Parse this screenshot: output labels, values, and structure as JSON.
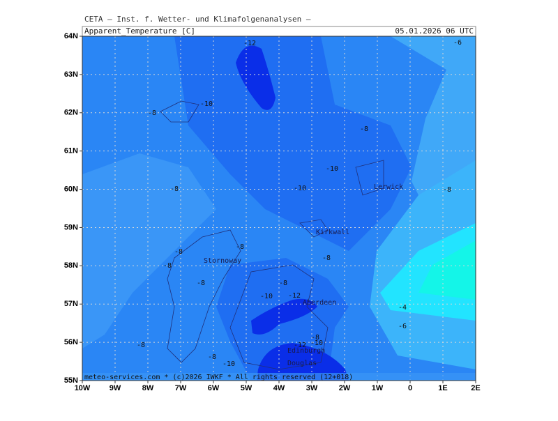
{
  "header": {
    "institute": "CETA — Inst. f. Wetter- und Klimafolgenanalysen —",
    "variable": "Apparent_Temperature [C]",
    "datetime": "05.01.2026 06 UTC"
  },
  "map": {
    "lat_labels": [
      "55N",
      "56N",
      "57N",
      "58N",
      "59N",
      "60N",
      "61N",
      "62N",
      "63N",
      "64N"
    ],
    "lon_labels": [
      "10W",
      "9W",
      "8W",
      "7W",
      "6W",
      "5W",
      "4W",
      "3W",
      "2W",
      "1W",
      "0",
      "1E",
      "2E"
    ],
    "contour_labels": [
      "-12",
      "-6",
      "-10",
      "-8",
      "-8",
      "-10",
      "-8",
      "-10",
      "-8",
      "-8",
      "-8",
      "-8",
      "-8",
      "-8",
      "-8",
      "-10",
      "-12",
      "-4",
      "-6",
      "-8",
      "-8",
      "-12",
      "-10",
      "-8",
      "-10"
    ],
    "places": [
      "Lerwick",
      "Kirkwall",
      "Stornoway",
      "Aberdeen",
      "Edinburgh",
      "Douglas"
    ],
    "footer": "meteo-services.com * (c)2026 IWKF * All rights reserved (12+018)"
  }
}
